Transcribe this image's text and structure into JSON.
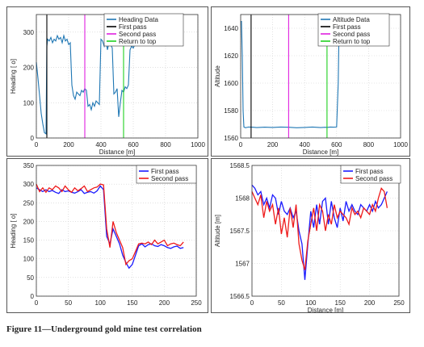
{
  "caption": "Figure 11—Underground gold mine test correlation",
  "chart_data": [
    {
      "type": "line",
      "xlabel": "Distance [m]",
      "ylabel": "Heading [  o]",
      "xlim": [
        0,
        1000
      ],
      "ylim": [
        0,
        350
      ],
      "xticks": [
        0,
        200,
        400,
        600,
        800,
        1000
      ],
      "yticks": [
        0,
        100,
        200,
        300
      ],
      "grid": true,
      "legend_position": "top-right",
      "series": [
        {
          "name": "Heading Data",
          "color": "#1f77b4",
          "x": [
            0,
            10,
            20,
            30,
            40,
            50,
            60,
            65,
            70,
            80,
            90,
            100,
            110,
            120,
            130,
            140,
            150,
            160,
            170,
            180,
            190,
            200,
            210,
            220,
            230,
            240,
            250,
            260,
            270,
            280,
            290,
            300,
            310,
            320,
            330,
            340,
            350,
            360,
            370,
            380,
            390,
            400,
            410,
            420,
            430,
            440,
            450,
            460,
            470,
            480,
            490,
            500,
            510,
            520,
            530,
            540,
            550,
            560,
            570,
            580,
            590,
            600,
            610,
            620,
            630
          ],
          "y": [
            215,
            170,
            120,
            70,
            40,
            15,
            12,
            260,
            280,
            275,
            285,
            270,
            280,
            275,
            290,
            280,
            285,
            270,
            290,
            275,
            280,
            265,
            270,
            150,
            120,
            110,
            130,
            125,
            120,
            135,
            130,
            140,
            135,
            90,
            95,
            80,
            100,
            90,
            105,
            100,
            95,
            280,
            275,
            260,
            280,
            250,
            270,
            265,
            255,
            125,
            130,
            140,
            60,
            100,
            135,
            130,
            145,
            140,
            150,
            250,
            260,
            255,
            265,
            270,
            275
          ]
        },
        {
          "name": "First pass",
          "color": "#000000",
          "x": [
            65,
            65
          ],
          "y": [
            0,
            350
          ]
        },
        {
          "name": "Second pass",
          "color": "#e020e0",
          "x": [
            300,
            300
          ],
          "y": [
            0,
            350
          ]
        },
        {
          "name": "Return to top",
          "color": "#20d020",
          "x": [
            540,
            540
          ],
          "y": [
            0,
            350
          ]
        }
      ]
    },
    {
      "type": "line",
      "xlabel": "Distance [m]",
      "ylabel": "Altitude",
      "xlim": [
        0,
        1000
      ],
      "ylim": [
        1560,
        1650
      ],
      "xticks": [
        0,
        200,
        400,
        600,
        800,
        1000
      ],
      "yticks": [
        1560,
        1580,
        1600,
        1620,
        1640
      ],
      "grid": true,
      "legend_position": "top-right",
      "series": [
        {
          "name": "Altitude Data",
          "color": "#1f77b4",
          "x": [
            0,
            5,
            10,
            15,
            20,
            30,
            50,
            80,
            100,
            150,
            200,
            250,
            300,
            350,
            400,
            450,
            500,
            530,
            540,
            560,
            580,
            600,
            610,
            615,
            620,
            625
          ],
          "y": [
            1645,
            1645,
            1620,
            1580,
            1568,
            1567.5,
            1568,
            1567.8,
            1567.6,
            1567.9,
            1567.7,
            1568,
            1567.8,
            1567.5,
            1567.7,
            1568,
            1567.6,
            1567.8,
            1567.7,
            1568,
            1567.9,
            1568,
            1600,
            1640,
            1645,
            1646
          ]
        },
        {
          "name": "First pass",
          "color": "#000000",
          "x": [
            65,
            65
          ],
          "y": [
            1560,
            1650
          ]
        },
        {
          "name": "Second pass",
          "color": "#e020e0",
          "x": [
            300,
            300
          ],
          "y": [
            1560,
            1650
          ]
        },
        {
          "name": "Return to top",
          "color": "#20d020",
          "x": [
            540,
            540
          ],
          "y": [
            1560,
            1650
          ]
        }
      ]
    },
    {
      "type": "line",
      "xlabel": "",
      "ylabel": "Heading [  o]",
      "xlim": [
        0,
        250
      ],
      "ylim": [
        0,
        350
      ],
      "xticks": [
        0,
        50,
        100,
        150,
        200,
        250
      ],
      "yticks": [
        0,
        50,
        100,
        150,
        200,
        250,
        300,
        350
      ],
      "grid": true,
      "legend_position": "top-right",
      "series": [
        {
          "name": "First pass",
          "color": "#1a1aff",
          "x": [
            0,
            5,
            10,
            15,
            20,
            25,
            30,
            35,
            40,
            45,
            50,
            55,
            60,
            65,
            70,
            75,
            80,
            85,
            90,
            95,
            100,
            105,
            110,
            115,
            120,
            125,
            130,
            135,
            140,
            145,
            150,
            155,
            160,
            165,
            170,
            175,
            180,
            185,
            190,
            195,
            200,
            205,
            210,
            215,
            220,
            225,
            230
          ],
          "y": [
            290,
            285,
            280,
            285,
            280,
            283,
            278,
            275,
            285,
            280,
            282,
            278,
            276,
            280,
            285,
            275,
            278,
            280,
            276,
            282,
            295,
            285,
            160,
            140,
            180,
            160,
            140,
            110,
            90,
            75,
            85,
            110,
            135,
            140,
            132,
            138,
            140,
            135,
            133,
            138,
            135,
            130,
            128,
            132,
            134,
            128,
            130
          ]
        },
        {
          "name": "Second pass",
          "color": "#ee1a1a",
          "x": [
            0,
            5,
            10,
            15,
            20,
            25,
            30,
            35,
            40,
            45,
            50,
            55,
            60,
            65,
            70,
            75,
            80,
            85,
            90,
            95,
            100,
            105,
            110,
            115,
            120,
            125,
            130,
            135,
            140,
            145,
            150,
            155,
            160,
            165,
            170,
            175,
            180,
            185,
            190,
            195,
            200,
            205,
            210,
            215,
            220,
            225,
            230
          ],
          "y": [
            300,
            280,
            290,
            278,
            290,
            285,
            295,
            290,
            280,
            295,
            285,
            278,
            290,
            282,
            288,
            295,
            280,
            285,
            290,
            292,
            300,
            298,
            180,
            130,
            200,
            170,
            150,
            130,
            85,
            95,
            100,
            120,
            140,
            142,
            140,
            145,
            138,
            150,
            140,
            145,
            150,
            135,
            140,
            142,
            138,
            135,
            145
          ]
        }
      ]
    },
    {
      "type": "line",
      "xlabel": "Distance [m]",
      "ylabel": "Altitude [m]",
      "xlim": [
        0,
        250
      ],
      "ylim": [
        1566.5,
        1568.5
      ],
      "xticks": [
        0,
        50,
        100,
        150,
        200,
        250
      ],
      "yticks": [
        1566.5,
        1567,
        1567.5,
        1568,
        1568.5
      ],
      "grid": true,
      "legend_position": "top-right",
      "series": [
        {
          "name": "First pass",
          "color": "#1a1aff",
          "x": [
            0,
            5,
            10,
            15,
            20,
            25,
            30,
            35,
            40,
            45,
            50,
            55,
            60,
            65,
            70,
            75,
            80,
            85,
            90,
            95,
            100,
            105,
            110,
            115,
            120,
            125,
            130,
            135,
            140,
            145,
            150,
            155,
            160,
            165,
            170,
            175,
            180,
            185,
            190,
            195,
            200,
            205,
            210,
            215,
            220,
            225,
            230
          ],
          "y": [
            1568.2,
            1568.15,
            1568.05,
            1568.1,
            1567.9,
            1568.0,
            1567.85,
            1568.05,
            1568.0,
            1567.75,
            1567.95,
            1567.8,
            1567.75,
            1567.85,
            1567.7,
            1567.8,
            1567.5,
            1567.3,
            1566.75,
            1567.3,
            1567.8,
            1567.55,
            1567.9,
            1567.6,
            1567.95,
            1568.0,
            1567.6,
            1567.95,
            1567.7,
            1567.55,
            1567.85,
            1567.65,
            1567.95,
            1567.8,
            1567.9,
            1567.8,
            1567.75,
            1567.9,
            1567.85,
            1567.8,
            1567.9,
            1567.8,
            1567.95,
            1567.85,
            1567.9,
            1568.0,
            1568.1
          ]
        },
        {
          "name": "Second pass",
          "color": "#ee1a1a",
          "x": [
            0,
            5,
            10,
            15,
            20,
            25,
            30,
            35,
            40,
            45,
            50,
            55,
            60,
            65,
            70,
            75,
            80,
            85,
            90,
            95,
            100,
            105,
            110,
            115,
            120,
            125,
            130,
            135,
            140,
            145,
            150,
            155,
            160,
            165,
            170,
            175,
            180,
            185,
            190,
            195,
            200,
            205,
            210,
            215,
            220,
            225,
            230
          ],
          "y": [
            1568.1,
            1568.0,
            1567.9,
            1568.05,
            1567.7,
            1567.95,
            1567.8,
            1567.9,
            1567.6,
            1567.85,
            1567.45,
            1567.7,
            1567.4,
            1567.85,
            1567.55,
            1567.9,
            1567.3,
            1567.05,
            1566.9,
            1567.35,
            1567.6,
            1567.85,
            1567.5,
            1567.9,
            1567.8,
            1567.5,
            1567.75,
            1567.6,
            1567.9,
            1567.7,
            1567.8,
            1567.75,
            1567.7,
            1567.6,
            1567.85,
            1567.75,
            1567.8,
            1567.7,
            1567.85,
            1567.8,
            1567.75,
            1567.9,
            1567.8,
            1568.0,
            1568.15,
            1568.1,
            1567.85
          ]
        }
      ]
    }
  ]
}
